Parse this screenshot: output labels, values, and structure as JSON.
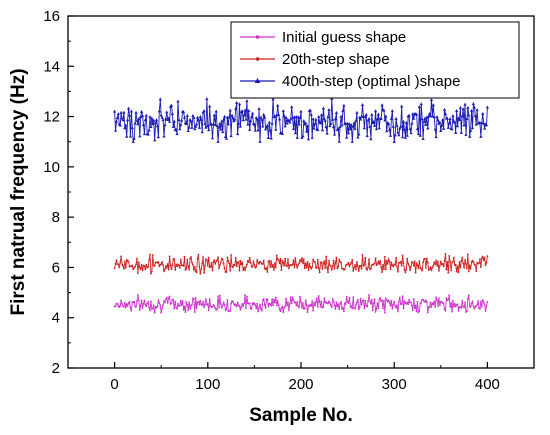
{
  "chart_data": {
    "type": "line",
    "title": "",
    "xlabel": "Sample No.",
    "ylabel": "First natrual frequency (Hz)",
    "xlim": [
      -50,
      450
    ],
    "ylim": [
      2,
      16
    ],
    "xticks": [
      0,
      100,
      200,
      300,
      400
    ],
    "yticks": [
      2,
      4,
      6,
      8,
      10,
      12,
      14,
      16
    ],
    "grid": false,
    "legend_position": "top-right",
    "sample_count": 400,
    "series": [
      {
        "name": "Initial guess shape",
        "color": "#cc33cc",
        "marker": "dot",
        "mean": 4.55,
        "min": 4.2,
        "max": 4.9
      },
      {
        "name": "20th-step shape",
        "color": "#cc2222",
        "marker": "dot",
        "mean": 6.1,
        "min": 5.75,
        "max": 6.55
      },
      {
        "name": "400th-step (optimal )shape",
        "color": "#1a1ab3",
        "marker": "triangle",
        "mean": 11.8,
        "min": 11.0,
        "max": 12.7
      }
    ]
  }
}
